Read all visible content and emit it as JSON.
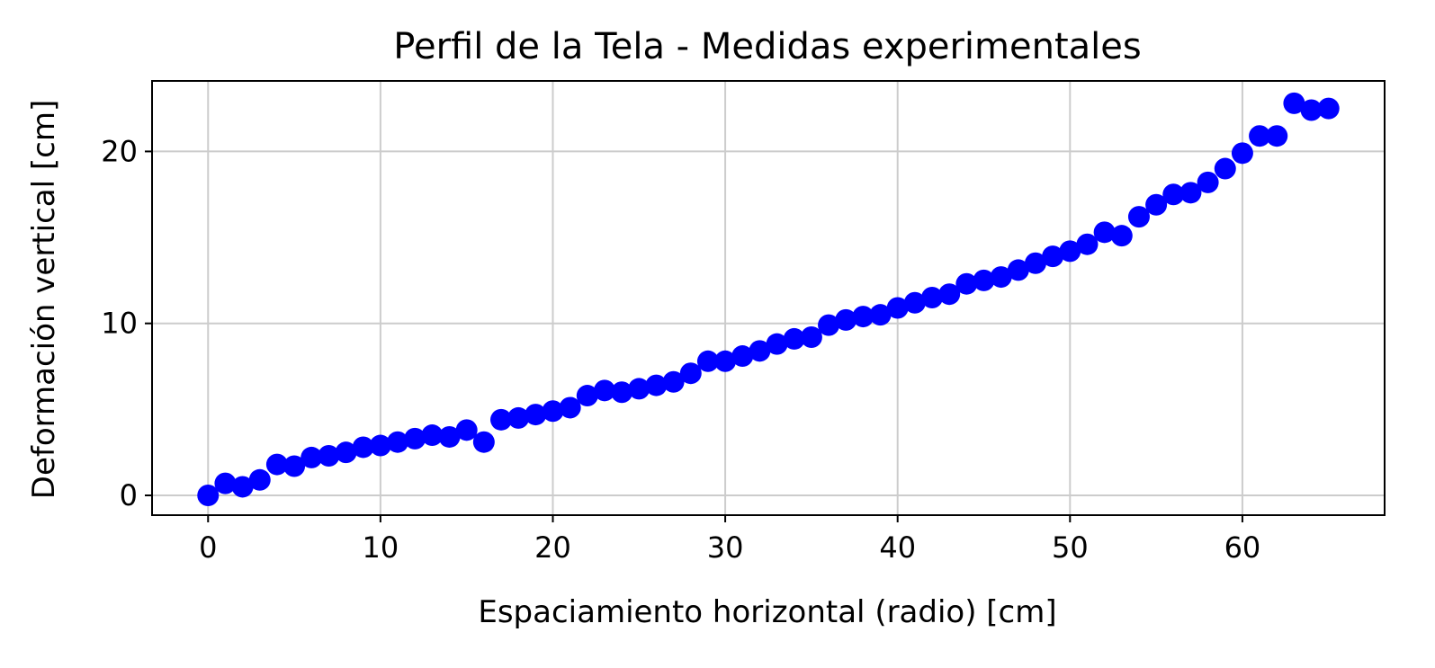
{
  "chart_data": {
    "type": "scatter",
    "title": "Perfil de la Tela - Medidas experimentales",
    "xlabel": "Espaciamiento horizontal (radio) [cm]",
    "ylabel": "Deformación vertical [cm]",
    "xlim": [
      -3.25,
      68.25
    ],
    "ylim": [
      -1.15,
      24.1
    ],
    "xticks": [
      0,
      10,
      20,
      30,
      40,
      50,
      60
    ],
    "yticks": [
      0,
      10,
      20
    ],
    "grid": true,
    "marker_color": "#0000ff",
    "series": [
      {
        "x": [
          0,
          1,
          2,
          3,
          4,
          5,
          6,
          7,
          8,
          9,
          10,
          11,
          12,
          13,
          14,
          15,
          16,
          17,
          18,
          19,
          20,
          21,
          22,
          23,
          24,
          25,
          26,
          27,
          28,
          29,
          30,
          31,
          32,
          33,
          34,
          35,
          36,
          37,
          38,
          39,
          40,
          41,
          42,
          43,
          44,
          45,
          46,
          47,
          48,
          49,
          50,
          51,
          52,
          53,
          54,
          55,
          56,
          57,
          58,
          59,
          60,
          61,
          62,
          63,
          64,
          65
        ],
        "y": [
          0,
          0.7,
          0.5,
          0.9,
          1.8,
          1.7,
          2.2,
          2.3,
          2.5,
          2.8,
          2.9,
          3.1,
          3.3,
          3.5,
          3.4,
          3.8,
          3.1,
          4.4,
          4.5,
          4.7,
          4.9,
          5.1,
          5.8,
          6.1,
          6.0,
          6.2,
          6.4,
          6.6,
          7.1,
          7.8,
          7.8,
          8.1,
          8.4,
          8.8,
          9.1,
          9.2,
          9.9,
          10.2,
          10.4,
          10.5,
          10.9,
          11.2,
          11.5,
          11.7,
          12.3,
          12.5,
          12.7,
          13.1,
          13.5,
          13.9,
          14.2,
          14.6,
          15.3,
          15.1,
          16.2,
          16.9,
          17.5,
          17.6,
          18.2,
          19.0,
          19.9,
          20.9,
          20.9,
          22.8,
          22.4,
          22.5
        ]
      }
    ]
  }
}
